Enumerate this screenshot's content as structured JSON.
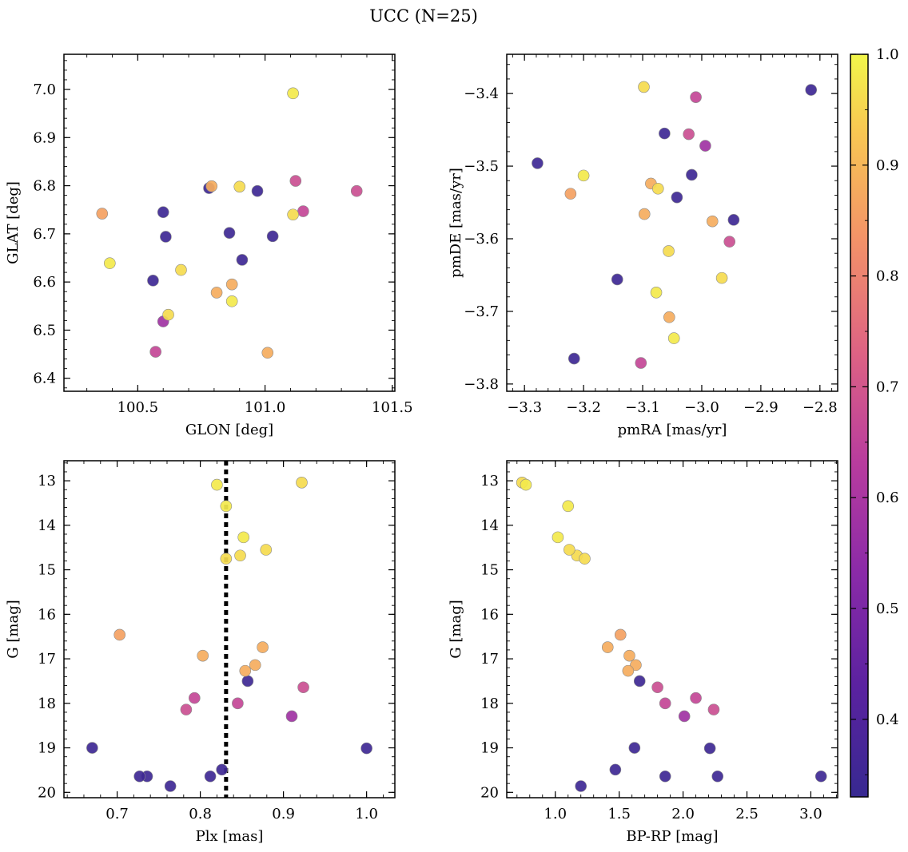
{
  "chart_data": {
    "title": "UCC (N=25)",
    "type": "scatter",
    "colormap": "plasma",
    "color_range": [
      0.33,
      1.0
    ],
    "colorbar_ticks": [
      "0.4",
      "0.5",
      "0.6",
      "0.7",
      "0.8",
      "0.9",
      "1.0"
    ],
    "dashed_line_x": 0.831,
    "stars": [
      {
        "glon": 100.36,
        "glat": 6.742,
        "pmra": -3.222,
        "pmde": -3.538,
        "plx": 0.703,
        "g": 16.46,
        "bprp": 1.51,
        "p": 0.86
      },
      {
        "glon": 100.39,
        "glat": 6.639,
        "pmra": -3.2,
        "pmde": -3.513,
        "plx": 0.852,
        "g": 14.27,
        "bprp": 1.02,
        "p": 0.98
      },
      {
        "glon": 100.56,
        "glat": 6.603,
        "pmra": -3.143,
        "pmde": -3.656,
        "plx": 0.67,
        "g": 19.0,
        "bprp": 1.62,
        "p": 0.35
      },
      {
        "glon": 100.57,
        "glat": 6.455,
        "pmra": -3.103,
        "pmde": -3.771,
        "plx": 0.793,
        "g": 17.88,
        "bprp": 2.1,
        "p": 0.66
      },
      {
        "glon": 100.6,
        "glat": 6.518,
        "pmra": -2.994,
        "pmde": -3.472,
        "plx": 0.91,
        "g": 18.29,
        "bprp": 2.01,
        "p": 0.58
      },
      {
        "glon": 100.6,
        "glat": 6.745,
        "pmra": -3.063,
        "pmde": -3.455,
        "plx": 0.736,
        "g": 19.64,
        "bprp": 1.86,
        "p": 0.35
      },
      {
        "glon": 100.61,
        "glat": 6.694,
        "pmra": -3.042,
        "pmde": -3.543,
        "plx": 0.764,
        "g": 19.86,
        "bprp": 1.2,
        "p": 0.35
      },
      {
        "glon": 100.62,
        "glat": 6.532,
        "pmra": -3.098,
        "pmde": -3.391,
        "plx": 0.922,
        "g": 13.04,
        "bprp": 0.74,
        "p": 0.96
      },
      {
        "glon": 100.67,
        "glat": 6.625,
        "pmra": -3.056,
        "pmde": -3.617,
        "plx": 0.848,
        "g": 14.68,
        "bprp": 1.17,
        "p": 0.96
      },
      {
        "glon": 100.78,
        "glat": 6.795,
        "pmra": -3.278,
        "pmde": -3.496,
        "plx": 0.727,
        "g": 19.64,
        "bprp": 2.27,
        "p": 0.35
      },
      {
        "glon": 100.79,
        "glat": 6.799,
        "pmra": -3.097,
        "pmde": -3.566,
        "plx": 0.875,
        "g": 16.74,
        "bprp": 1.41,
        "p": 0.88
      },
      {
        "glon": 100.81,
        "glat": 6.578,
        "pmra": -3.055,
        "pmde": -3.708,
        "plx": 0.866,
        "g": 17.14,
        "bprp": 1.63,
        "p": 0.88
      },
      {
        "glon": 100.86,
        "glat": 6.702,
        "pmra": -3.017,
        "pmde": -3.512,
        "plx": 0.826,
        "g": 19.49,
        "bprp": 1.47,
        "p": 0.35
      },
      {
        "glon": 100.87,
        "glat": 6.595,
        "pmra": -3.086,
        "pmde": -3.524,
        "plx": 0.803,
        "g": 16.93,
        "bprp": 1.58,
        "p": 0.88
      },
      {
        "glon": 100.87,
        "glat": 6.56,
        "pmra": -3.047,
        "pmde": -3.737,
        "plx": 0.82,
        "g": 13.09,
        "bprp": 0.77,
        "p": 0.98
      },
      {
        "glon": 100.9,
        "glat": 6.798,
        "pmra": -3.074,
        "pmde": -3.531,
        "plx": 0.879,
        "g": 14.55,
        "bprp": 1.11,
        "p": 0.96
      },
      {
        "glon": 100.91,
        "glat": 6.646,
        "pmra": -2.946,
        "pmde": -3.574,
        "plx": 0.857,
        "g": 17.5,
        "bprp": 1.66,
        "p": 0.35
      },
      {
        "glon": 100.97,
        "glat": 6.789,
        "pmra": -3.216,
        "pmde": -3.765,
        "plx": 1.0,
        "g": 19.01,
        "bprp": 2.21,
        "p": 0.35
      },
      {
        "glon": 101.01,
        "glat": 6.453,
        "pmra": -2.982,
        "pmde": -3.576,
        "plx": 0.854,
        "g": 17.27,
        "bprp": 1.57,
        "p": 0.88
      },
      {
        "glon": 101.03,
        "glat": 6.695,
        "pmra": -2.815,
        "pmde": -3.395,
        "plx": 0.812,
        "g": 19.64,
        "bprp": 3.08,
        "p": 0.35
      },
      {
        "glon": 101.11,
        "glat": 6.992,
        "pmra": -3.077,
        "pmde": -3.674,
        "plx": 0.831,
        "g": 13.57,
        "bprp": 1.1,
        "p": 0.98
      },
      {
        "glon": 101.11,
        "glat": 6.74,
        "pmra": -2.966,
        "pmde": -3.654,
        "plx": 0.831,
        "g": 14.75,
        "bprp": 1.23,
        "p": 0.96
      },
      {
        "glon": 101.12,
        "glat": 6.81,
        "pmra": -3.022,
        "pmde": -3.456,
        "plx": 0.924,
        "g": 17.64,
        "bprp": 1.8,
        "p": 0.68
      },
      {
        "glon": 101.15,
        "glat": 6.747,
        "pmra": -3.01,
        "pmde": -3.405,
        "plx": 0.845,
        "g": 18.0,
        "bprp": 1.86,
        "p": 0.66
      },
      {
        "glon": 101.36,
        "glat": 6.789,
        "pmra": -2.953,
        "pmde": -3.604,
        "plx": 0.783,
        "g": 18.14,
        "bprp": 2.24,
        "p": 0.68
      }
    ],
    "panels": [
      {
        "key": "tl",
        "xkey": "glon",
        "ykey": "glat",
        "invertY": false,
        "xlabel": "GLON [deg]",
        "ylabel": "GLAT [deg]",
        "xlim": [
          100.21,
          101.51
        ],
        "ylim": [
          6.373,
          7.073
        ],
        "xticks": [
          {
            "v": 100.5,
            "t": "100.5"
          },
          {
            "v": 101.0,
            "t": "101.0"
          },
          {
            "v": 101.5,
            "t": "101.5"
          }
        ],
        "yticks": [
          {
            "v": 6.4,
            "t": "6.4"
          },
          {
            "v": 6.5,
            "t": "6.5"
          },
          {
            "v": 6.6,
            "t": "6.6"
          },
          {
            "v": 6.7,
            "t": "6.7"
          },
          {
            "v": 6.8,
            "t": "6.8"
          },
          {
            "v": 6.9,
            "t": "6.9"
          },
          {
            "v": 7.0,
            "t": "7.0"
          }
        ],
        "xminor": 0.1,
        "yminor": 0.02
      },
      {
        "key": "tr",
        "xkey": "pmra",
        "ykey": "pmde",
        "invertY": false,
        "xlabel": "pmRA [mas/yr]",
        "ylabel": "pmDE [mas/yr]",
        "xlim": [
          -3.33,
          -2.77
        ],
        "ylim": [
          -3.81,
          -3.346
        ],
        "xticks": [
          {
            "v": -3.3,
            "t": "−3.3"
          },
          {
            "v": -3.2,
            "t": "−3.2"
          },
          {
            "v": -3.1,
            "t": "−3.1"
          },
          {
            "v": -3.0,
            "t": "−3.0"
          },
          {
            "v": -2.9,
            "t": "−2.9"
          },
          {
            "v": -2.8,
            "t": "−2.8"
          }
        ],
        "yticks": [
          {
            "v": -3.8,
            "t": "−3.8"
          },
          {
            "v": -3.7,
            "t": "−3.7"
          },
          {
            "v": -3.6,
            "t": "−3.6"
          },
          {
            "v": -3.5,
            "t": "−3.5"
          },
          {
            "v": -3.4,
            "t": "−3.4"
          }
        ],
        "xminor": 0.02,
        "yminor": 0.02
      },
      {
        "key": "bl",
        "xkey": "plx",
        "ykey": "g",
        "invertY": true,
        "xlabel": "Plx [mas]",
        "ylabel": "G [mag]",
        "xlim": [
          0.636,
          1.034
        ],
        "ylim": [
          12.55,
          20.12
        ],
        "xticks": [
          {
            "v": 0.7,
            "t": "0.7"
          },
          {
            "v": 0.8,
            "t": "0.8"
          },
          {
            "v": 0.9,
            "t": "0.9"
          },
          {
            "v": 1.0,
            "t": "1.0"
          }
        ],
        "yticks": [
          {
            "v": 13,
            "t": "13"
          },
          {
            "v": 14,
            "t": "14"
          },
          {
            "v": 15,
            "t": "15"
          },
          {
            "v": 16,
            "t": "16"
          },
          {
            "v": 17,
            "t": "17"
          },
          {
            "v": 18,
            "t": "18"
          },
          {
            "v": 19,
            "t": "19"
          },
          {
            "v": 20,
            "t": "20"
          }
        ],
        "xminor": 0.02,
        "yminor": 0.2
      },
      {
        "key": "br",
        "xkey": "bprp",
        "ykey": "g",
        "invertY": true,
        "xlabel": "BP-RP [mag]",
        "ylabel": "G [mag]",
        "xlim": [
          0.62,
          3.21
        ],
        "ylim": [
          12.55,
          20.12
        ],
        "xticks": [
          {
            "v": 1.0,
            "t": "1.0"
          },
          {
            "v": 1.5,
            "t": "1.5"
          },
          {
            "v": 2.0,
            "t": "2.0"
          },
          {
            "v": 2.5,
            "t": "2.5"
          },
          {
            "v": 3.0,
            "t": "3.0"
          }
        ],
        "yticks": [
          {
            "v": 13,
            "t": "13"
          },
          {
            "v": 14,
            "t": "14"
          },
          {
            "v": 15,
            "t": "15"
          },
          {
            "v": 16,
            "t": "16"
          },
          {
            "v": 17,
            "t": "17"
          },
          {
            "v": 18,
            "t": "18"
          },
          {
            "v": 19,
            "t": "19"
          },
          {
            "v": 20,
            "t": "20"
          }
        ],
        "xminor": 0.1,
        "yminor": 0.2
      }
    ]
  }
}
